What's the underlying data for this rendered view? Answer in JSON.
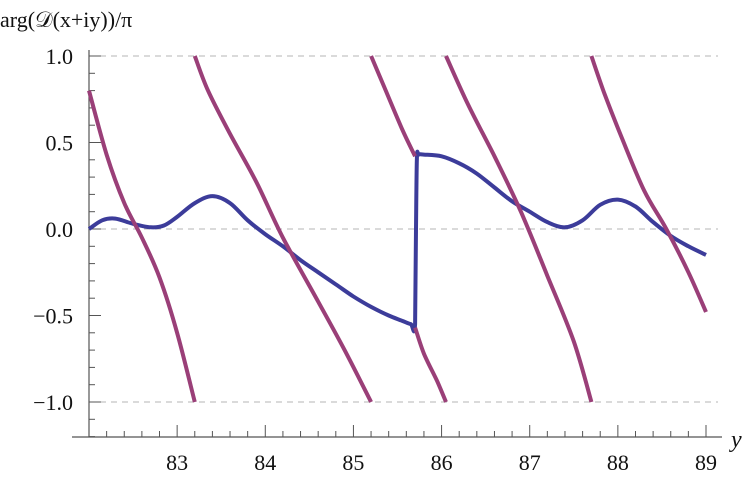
{
  "chart_data": {
    "type": "line",
    "title": "",
    "xlabel": "y",
    "ylabel": "arg(𝒟(x+iy))/π",
    "xlim": [
      82.0,
      89.2
    ],
    "ylim": [
      -1.2,
      1.0
    ],
    "x_ticks": [
      83,
      84,
      85,
      86,
      87,
      88,
      89
    ],
    "x_tick_labels": [
      "83",
      "84",
      "85",
      "86",
      "87",
      "88",
      "89"
    ],
    "y_ticks": [
      1.0,
      0.5,
      0.0,
      -0.5,
      -1.0
    ],
    "y_tick_labels": [
      "1.0",
      "0.5",
      "0.0",
      "−0.5",
      "−1.0"
    ],
    "gridlines_dashed_at_y": [
      1.0,
      0.0,
      -1.0
    ],
    "colors": {
      "blue": "#3c3c9a",
      "purple": "#9a3f78",
      "grid": "#b5b5b5"
    },
    "series": [
      {
        "color": "#3c3c9a",
        "x": [
          82.0,
          82.15,
          82.3,
          82.5,
          82.7,
          82.85,
          83.0,
          83.2,
          83.4,
          83.6,
          83.8,
          84.0,
          84.2,
          84.4,
          84.6,
          84.8,
          85.0,
          85.2,
          85.4,
          85.55,
          85.65,
          85.7,
          85.71,
          85.72,
          85.74,
          85.8,
          86.0,
          86.2,
          86.4,
          86.6,
          86.8,
          87.0,
          87.2,
          87.4,
          87.6,
          87.8,
          88.0,
          88.2,
          88.4,
          88.6,
          88.8,
          89.0
        ],
        "values": [
          0.0,
          0.05,
          0.06,
          0.03,
          0.01,
          0.02,
          0.07,
          0.15,
          0.19,
          0.15,
          0.05,
          -0.03,
          -0.1,
          -0.18,
          -0.25,
          -0.32,
          -0.39,
          -0.45,
          -0.5,
          -0.53,
          -0.55,
          -0.55,
          0.0,
          0.41,
          0.43,
          0.43,
          0.42,
          0.38,
          0.32,
          0.24,
          0.16,
          0.1,
          0.04,
          0.01,
          0.05,
          0.14,
          0.17,
          0.13,
          0.04,
          -0.04,
          -0.1,
          -0.15
        ]
      },
      {
        "color": "#9a3f78",
        "x": [
          82.0,
          82.2,
          82.4,
          82.6,
          82.8,
          83.0,
          83.2
        ],
        "values": [
          0.8,
          0.43,
          0.15,
          -0.05,
          -0.28,
          -0.6,
          -1.0
        ]
      },
      {
        "color": "#9a3f78",
        "x": [
          83.2,
          83.35,
          83.6,
          83.9,
          84.2,
          84.6,
          84.9,
          85.2
        ],
        "values": [
          1.0,
          0.8,
          0.55,
          0.27,
          -0.05,
          -0.42,
          -0.7,
          -1.0
        ]
      },
      {
        "color": "#9a3f78",
        "x": [
          85.2,
          85.35,
          85.55,
          85.7
        ],
        "values": [
          1.0,
          0.82,
          0.58,
          0.42
        ]
      },
      {
        "color": "#9a3f78",
        "x": [
          85.7,
          85.8,
          85.95,
          86.05
        ],
        "values": [
          -0.57,
          -0.72,
          -0.88,
          -1.0
        ]
      },
      {
        "color": "#9a3f78",
        "x": [
          86.05,
          86.3,
          86.6,
          86.9,
          87.2,
          87.5,
          87.7
        ],
        "values": [
          1.0,
          0.72,
          0.42,
          0.1,
          -0.27,
          -0.65,
          -1.0
        ]
      },
      {
        "color": "#9a3f78",
        "x": [
          87.7,
          87.85,
          88.05,
          88.3,
          88.55,
          88.8,
          89.0
        ],
        "values": [
          1.0,
          0.78,
          0.52,
          0.22,
          0.0,
          -0.25,
          -0.48
        ]
      }
    ]
  }
}
